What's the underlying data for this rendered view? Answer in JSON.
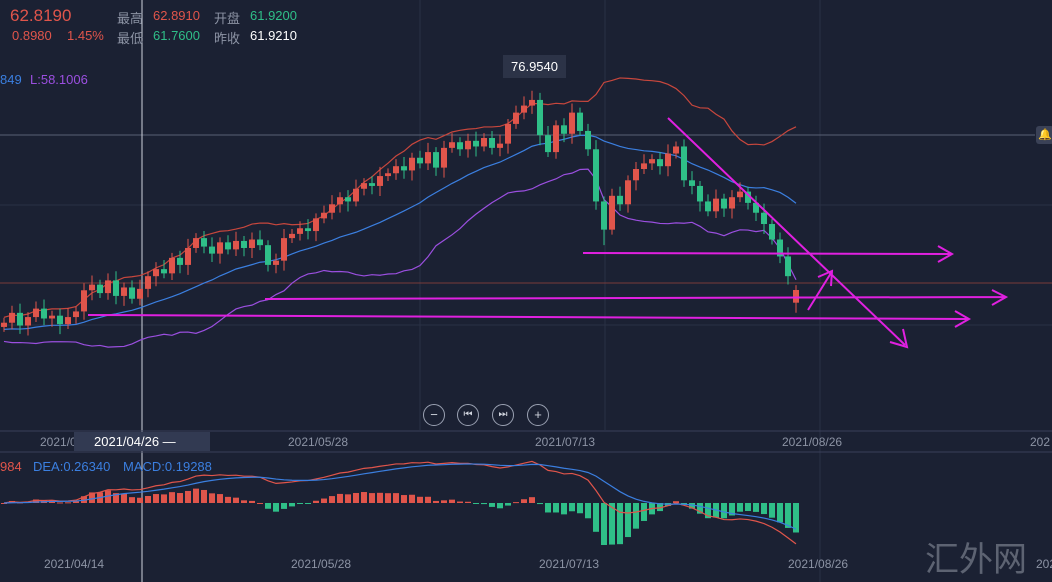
{
  "quote": {
    "price": "62.8190",
    "change": "0.8980",
    "change_pct": "1.45%",
    "high_label": "最高",
    "high": "62.8910",
    "low_label": "最低",
    "low": "61.7600",
    "open_label": "开盘",
    "open": "61.9200",
    "prev_close_label": "昨收",
    "prev_close": "61.9210"
  },
  "indicator": {
    "mid_partial": "849",
    "lower": "L:58.1006"
  },
  "max_tooltip": "76.9540",
  "crosshair_date": "2021/04/26 —",
  "x_axis": [
    "2021/0",
    "2021/05/28",
    "2021/07/13",
    "2021/08/26",
    "202"
  ],
  "macd_legend": {
    "dif_partial": "984",
    "dea": "DEA:0.26340",
    "macd": "MACD:0.19288"
  },
  "bottom_axis": [
    "2021/04/14",
    "2021/05/28",
    "2021/07/13",
    "2021/08/26",
    "202"
  ],
  "watermark": "汇外网",
  "controls": {
    "zoom_out": "−",
    "prev": "⏮",
    "next": "⏭",
    "zoom_in": "+"
  },
  "colors": {
    "up": "#e0554b",
    "down": "#2fbf88",
    "upper": "#c8473d",
    "mid": "#3b7fe0",
    "lower": "#9b4fe0",
    "drawing": "#e020e0"
  },
  "chart_data": {
    "type": "candlestick",
    "closes": [
      60.5,
      61.2,
      60.3,
      60.9,
      61.5,
      60.8,
      61.0,
      60.4,
      60.9,
      61.3,
      62.8,
      63.2,
      62.6,
      63.5,
      62.4,
      63.0,
      62.2,
      62.9,
      63.8,
      64.3,
      64.0,
      65.1,
      64.6,
      65.8,
      66.5,
      65.9,
      65.4,
      66.2,
      65.7,
      66.3,
      65.8,
      66.4,
      66.0,
      64.6,
      64.9,
      66.5,
      66.8,
      67.2,
      67.0,
      67.9,
      68.3,
      68.9,
      69.4,
      69.1,
      70.0,
      70.4,
      70.2,
      70.9,
      71.1,
      71.6,
      71.3,
      72.2,
      71.8,
      72.6,
      71.5,
      72.9,
      73.3,
      72.8,
      73.4,
      73.0,
      73.6,
      72.9,
      73.2,
      74.6,
      75.4,
      75.9,
      76.3,
      73.8,
      72.6,
      74.5,
      73.9,
      75.4,
      74.1,
      72.8,
      69.1,
      67.1,
      69.5,
      68.9,
      70.6,
      71.4,
      71.8,
      72.1,
      71.6,
      72.5,
      73.0,
      70.6,
      70.2,
      69.1,
      68.4,
      69.3,
      68.6,
      69.4,
      69.8,
      69.0,
      68.3,
      67.5,
      66.4,
      65.2,
      63.8,
      62.82
    ],
    "last_open": 61.92,
    "max_high": 76.954
  }
}
